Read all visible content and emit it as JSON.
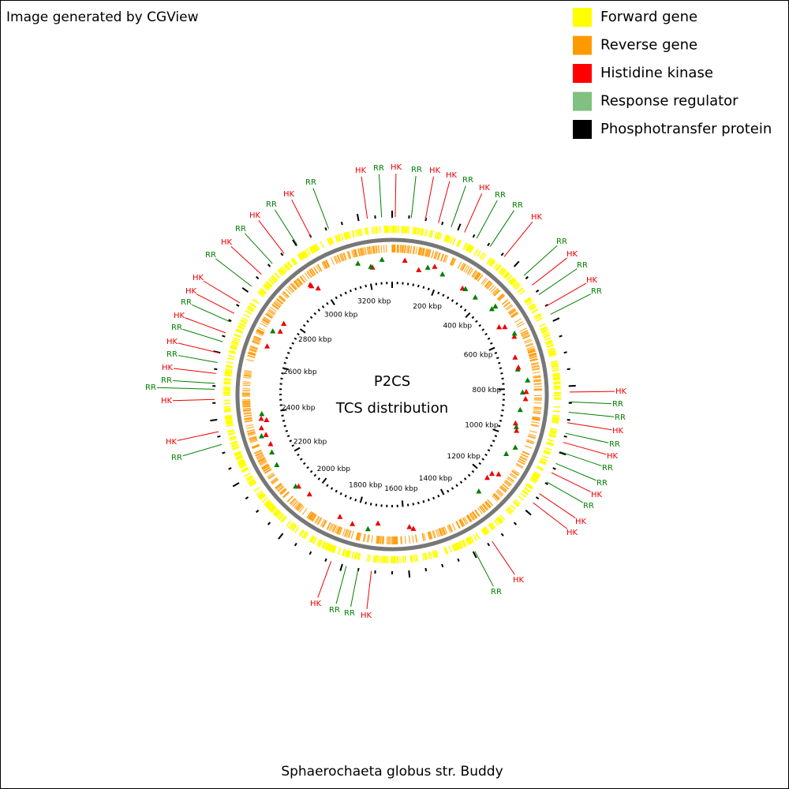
{
  "header": "Image generated by CGView",
  "legend": [
    "Forward gene",
    "Reverse gene",
    "Histidine kinase",
    "Response regulator",
    "Phosphotransfer protein"
  ],
  "center": {
    "title": "P2CS",
    "subtitle": "TCS distribution"
  },
  "scale_labels": [
    "200 kbp",
    "400 kbp",
    "600 kbp",
    "800 kbp",
    "1000 kbp",
    "1200 kbp",
    "1400 kbp",
    "1600 kbp",
    "1800 kbp",
    "2000 kbp",
    "2200 kbp",
    "2400 kbp",
    "2600 kbp",
    "2800 kbp",
    "3000 kbp",
    "3200 kbp"
  ],
  "feature_labels": [
    "HK",
    "RR",
    "HK",
    "RR",
    "HK",
    "HK",
    "RR",
    "HK",
    "RR",
    "RR",
    "HK",
    "RR",
    "HK",
    "RR",
    "HK",
    "RR",
    "HK",
    "RR",
    "RR",
    "HK",
    "RR",
    "HK",
    "RR",
    "RR",
    "HK",
    "RR",
    "HK",
    "HK",
    "HK",
    "RR",
    "HK",
    "RR",
    "RR",
    "HK",
    "HK",
    "RR",
    "HK",
    "RR",
    "RR",
    "HK",
    "RR",
    "HK",
    "RR",
    "HK",
    "RR",
    "HK",
    "HK",
    "RR",
    "HK",
    "RR",
    "HK",
    "RR",
    "HK",
    "RR"
  ],
  "footer": "Sphaerochaeta globus str. Buddy"
}
